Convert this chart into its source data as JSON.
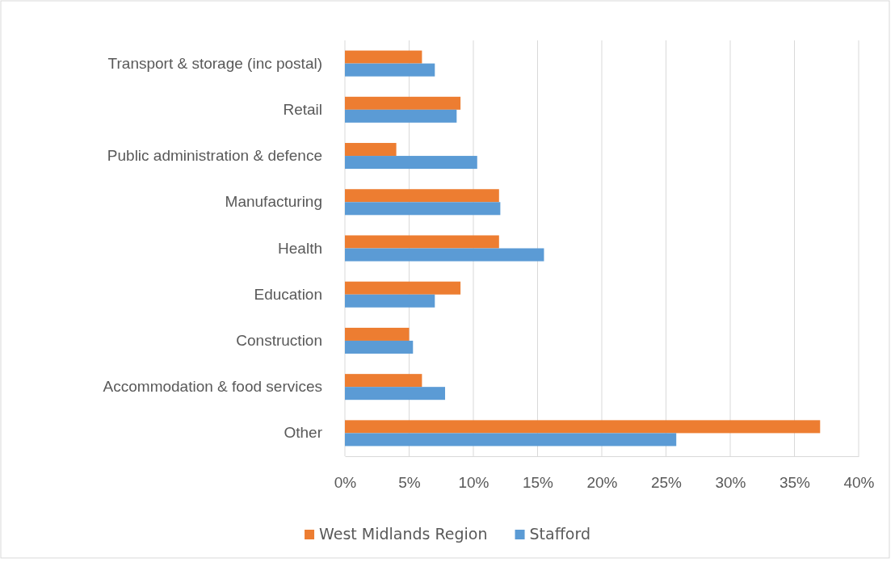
{
  "chart_data": {
    "type": "bar",
    "orientation": "horizontal",
    "categories": [
      "Transport & storage (inc postal)",
      "Retail",
      "Public administration & defence",
      "Manufacturing",
      "Health",
      "Education",
      "Construction",
      "Accommodation & food services",
      "Other"
    ],
    "series": [
      {
        "name": "West Midlands Region",
        "color": "#ed7d31",
        "values": [
          6,
          9,
          4,
          12,
          12,
          9,
          5,
          6,
          37
        ]
      },
      {
        "name": "Stafford",
        "color": "#5b9bd5",
        "values": [
          7,
          8.7,
          10.3,
          12.1,
          15.5,
          7,
          5.3,
          7.8,
          25.8
        ]
      }
    ],
    "xlim": [
      0,
      40
    ],
    "xticks": [
      {
        "value": 0,
        "label": "0%"
      },
      {
        "value": 5,
        "label": "5%"
      },
      {
        "value": 10,
        "label": "10%"
      },
      {
        "value": 15,
        "label": "15%"
      },
      {
        "value": 20,
        "label": "20%"
      },
      {
        "value": 25,
        "label": "25%"
      },
      {
        "value": 30,
        "label": "30%"
      },
      {
        "value": 35,
        "label": "35%"
      },
      {
        "value": 40,
        "label": "40%"
      }
    ],
    "grid": "x",
    "legend": "bottom"
  }
}
